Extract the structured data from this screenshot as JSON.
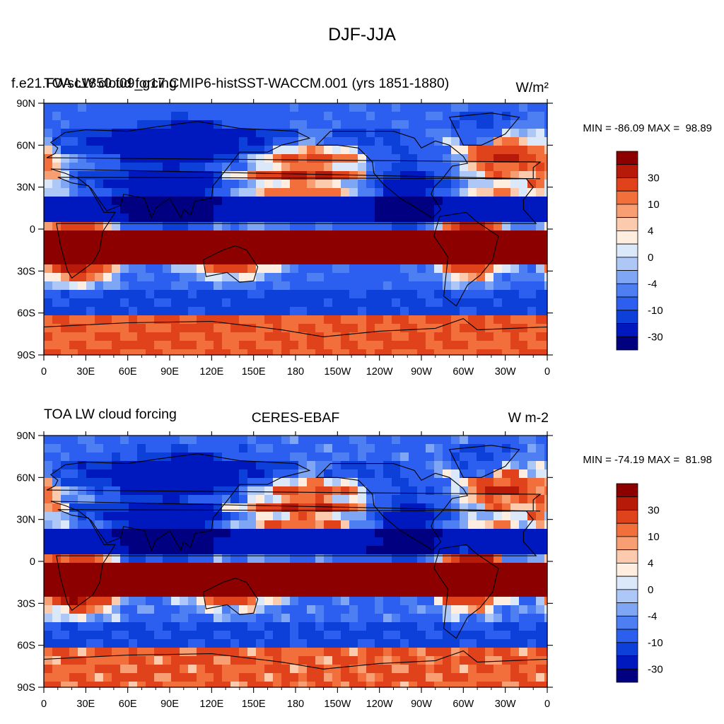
{
  "figure": {
    "title": "DJF-JJA"
  },
  "colors": {
    "levels_palette": [
      "#000080",
      "#0019bf",
      "#0d3fd9",
      "#2c5ff0",
      "#4d7ff2",
      "#7fa6f5",
      "#adc8f7",
      "#dbe8fa",
      "#ffeee0",
      "#fccaad",
      "#f79e73",
      "#f26e3b",
      "#e0421c",
      "#b81a0a",
      "#8c0000"
    ],
    "coast": "#000000"
  },
  "panels": [
    {
      "left_title": "f.e21.FWsc1850.f09_g17.CMIP6-histSST-WACCM.001 (yrs 1851-1880)",
      "overlap_left_title": "TOA LW cloud forcing",
      "overlap_right_title": "W/m²",
      "center_title": "",
      "right_title": "",
      "stats": "MIN = -86.09 MAX =  98.89"
    },
    {
      "left_title": "TOA LW cloud forcing",
      "overlap_left_title": "",
      "overlap_right_title": "",
      "center_title": "CERES-EBAF",
      "right_title": "W m-2",
      "stats": "MIN = -74.19 MAX =  81.98"
    }
  ],
  "chart_data": [
    {
      "type": "heatmap",
      "title": "f.e21.FWsc1850.f09_g17.CMIP6-histSST-WACCM.001 (yrs 1851-1880)",
      "variable": "TOA LW cloud forcing",
      "units": "W/m²",
      "season_difference": "DJF-JJA",
      "xlabel": "",
      "ylabel": "",
      "xlim": [
        0,
        360
      ],
      "ylim": [
        -90,
        90
      ],
      "x_ticks": [
        "0",
        "30E",
        "60E",
        "90E",
        "120E",
        "150E",
        "180",
        "150W",
        "120W",
        "90W",
        "60W",
        "30W",
        "0"
      ],
      "y_ticks": [
        "90N",
        "60N",
        "30N",
        "0",
        "30S",
        "60S",
        "90S"
      ],
      "colorbar_labels": [
        "30",
        "10",
        "4",
        "0",
        "-4",
        "-10",
        "-30"
      ],
      "min": -86.09,
      "max": 98.89
    },
    {
      "type": "heatmap",
      "title": "CERES-EBAF",
      "variable": "TOA LW cloud forcing",
      "units": "W m-2",
      "season_difference": "DJF-JJA",
      "xlabel": "",
      "ylabel": "",
      "xlim": [
        0,
        360
      ],
      "ylim": [
        -90,
        90
      ],
      "x_ticks": [
        "0",
        "30E",
        "60E",
        "90E",
        "120E",
        "150E",
        "180",
        "150W",
        "120W",
        "90W",
        "60W",
        "30W",
        "0"
      ],
      "y_ticks": [
        "90N",
        "60N",
        "30N",
        "0",
        "30S",
        "60S",
        "90S"
      ],
      "colorbar_labels": [
        "30",
        "10",
        "4",
        "0",
        "-4",
        "-10",
        "-30"
      ],
      "min": -74.19,
      "max": 81.98
    }
  ]
}
